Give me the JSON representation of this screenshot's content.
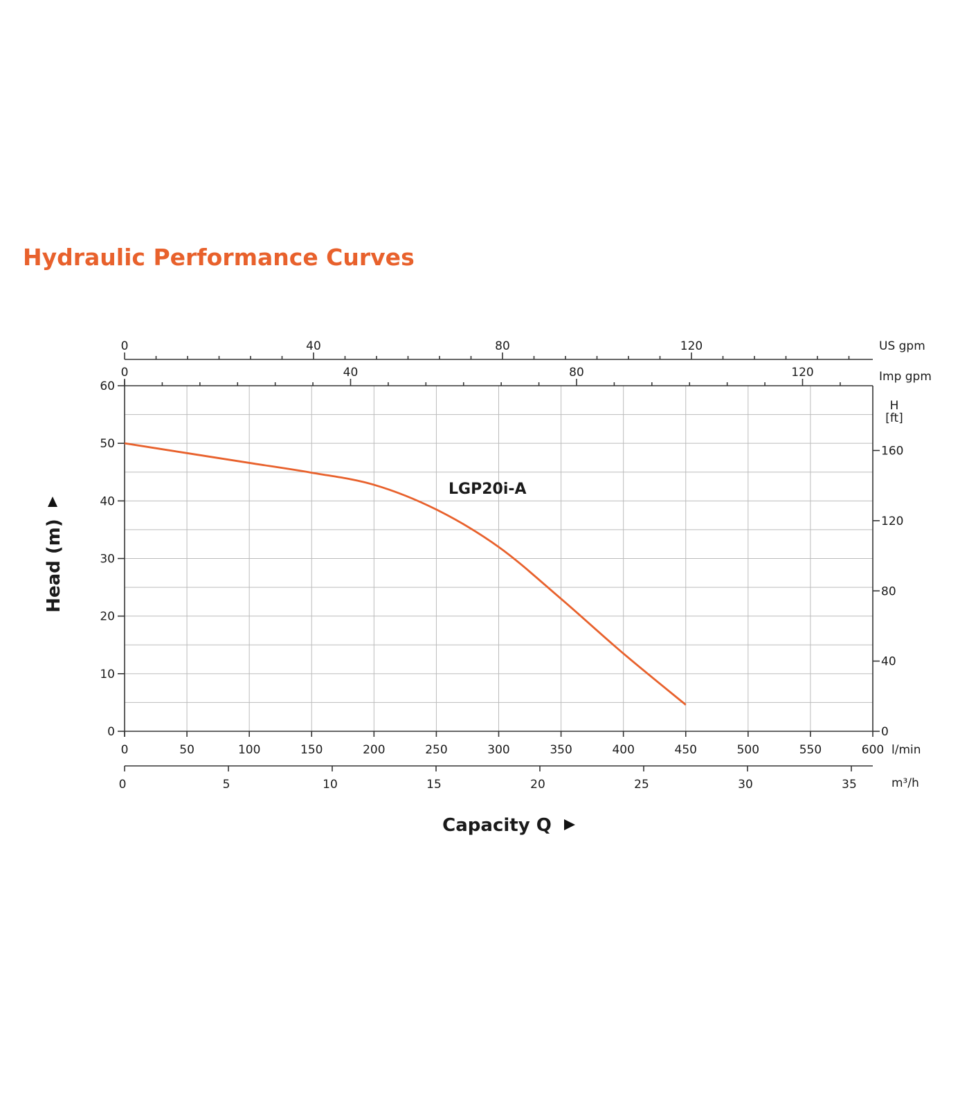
{
  "chart_data": {
    "type": "line",
    "title": "Hydraulic Performance Curves",
    "xlabel": "Capacity Q",
    "ylabel": "Head (m)",
    "xlim": [
      0,
      600
    ],
    "ylim": [
      0,
      60
    ],
    "grid": true,
    "x_unit": "l/min",
    "x_ticks": [
      0,
      50,
      100,
      150,
      200,
      250,
      300,
      350,
      400,
      450,
      500,
      550,
      600
    ],
    "y_ticks": [
      0,
      10,
      20,
      30,
      40,
      50,
      60
    ],
    "secondary_axes": {
      "m3h": {
        "unit": "m³/h",
        "range": [
          0,
          36
        ],
        "ticks": [
          0,
          5,
          10,
          15,
          20,
          25,
          30,
          35
        ]
      },
      "us_gpm": {
        "unit": "US gpm",
        "range": [
          0,
          158.5
        ],
        "ticks": [
          0,
          40,
          80,
          120
        ]
      },
      "imp_gpm": {
        "unit": "Imp gpm",
        "range": [
          0,
          132
        ],
        "ticks": [
          0,
          40,
          80,
          120
        ]
      },
      "ft": {
        "unit_line1": "H",
        "unit_line2": "[ft]",
        "range": [
          0,
          196.9
        ],
        "ticks": [
          0,
          40,
          80,
          120,
          160
        ]
      }
    },
    "series": [
      {
        "name": "LGP20i-A",
        "color": "#e8612c",
        "x": [
          0,
          50,
          100,
          150,
          200,
          250,
          300,
          350,
          400,
          450
        ],
        "y": [
          50,
          48.3,
          46.6,
          44.9,
          42.8,
          38.5,
          32,
          23,
          13.5,
          4.6
        ]
      }
    ]
  }
}
